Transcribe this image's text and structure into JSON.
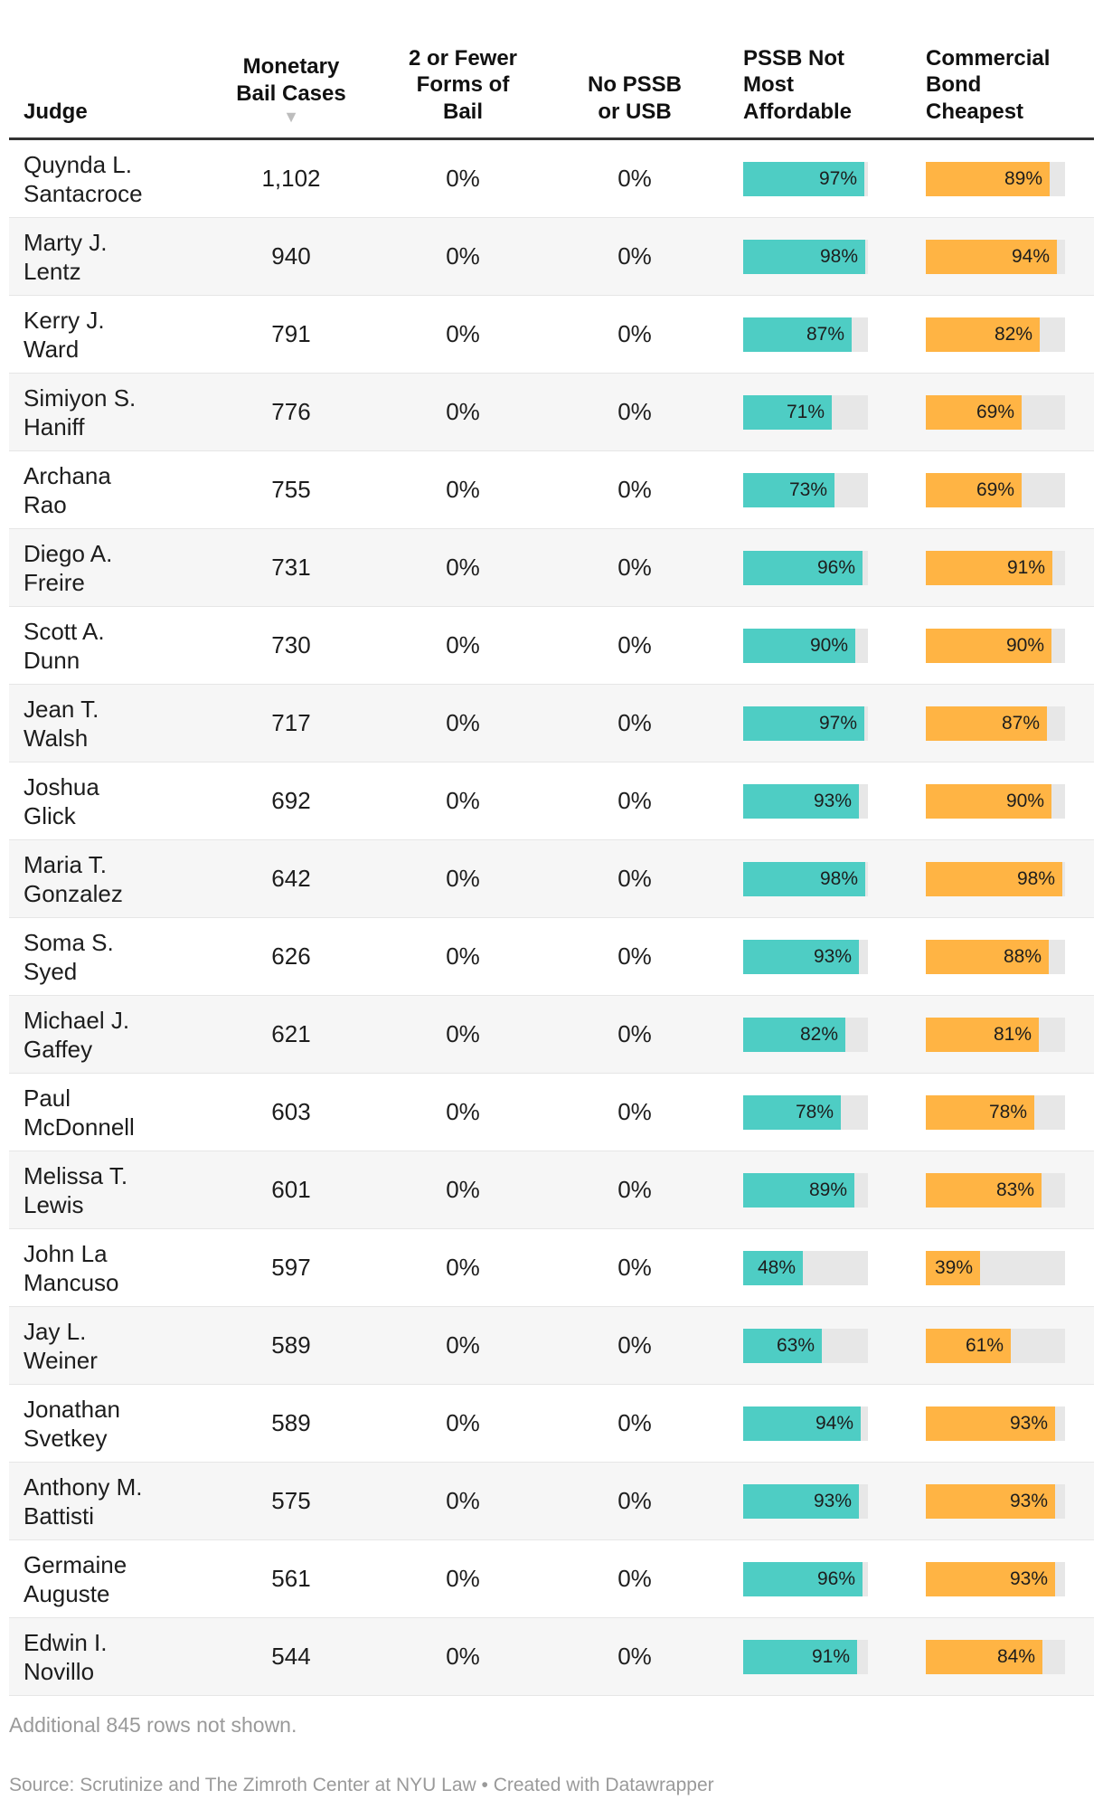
{
  "table": {
    "headers": {
      "judge": "Judge",
      "monetary": [
        "Monetary",
        "Bail Cases"
      ],
      "sort_icon": "▼",
      "two_or_fewer": [
        "2 or Fewer",
        "Forms of",
        "Bail"
      ],
      "no_pssb": [
        "No PSSB",
        "or USB"
      ],
      "pssb_not": [
        "PSSB Not",
        "Most",
        "Affordable"
      ],
      "commercial": [
        "Commercial",
        "Bond",
        "Cheapest"
      ]
    },
    "colors": {
      "pssb_bar": "#4ecdc4",
      "commercial_bar": "#ffb444",
      "track": "#e7e7e7"
    }
  },
  "chart_data": {
    "type": "table",
    "columns": [
      "Judge",
      "Monetary Bail Cases",
      "2 or Fewer Forms of Bail",
      "No PSSB or USB",
      "PSSB Not Most Affordable",
      "Commercial Bond Cheapest"
    ],
    "rows": [
      {
        "judge": [
          "Quynda L.",
          "Santacroce"
        ],
        "monetary": "1,102",
        "two_or_fewer": "0%",
        "no_pssb": "0%",
        "pssb_not": 97,
        "pssb_label": "97%",
        "commercial": 89,
        "commercial_label": "89%"
      },
      {
        "judge": [
          "Marty J.",
          "Lentz"
        ],
        "monetary": "940",
        "two_or_fewer": "0%",
        "no_pssb": "0%",
        "pssb_not": 98,
        "pssb_label": "98%",
        "commercial": 94,
        "commercial_label": "94%"
      },
      {
        "judge": [
          "Kerry J.",
          "Ward"
        ],
        "monetary": "791",
        "two_or_fewer": "0%",
        "no_pssb": "0%",
        "pssb_not": 87,
        "pssb_label": "87%",
        "commercial": 82,
        "commercial_label": "82%"
      },
      {
        "judge": [
          "Simiyon S.",
          "Haniff"
        ],
        "monetary": "776",
        "two_or_fewer": "0%",
        "no_pssb": "0%",
        "pssb_not": 71,
        "pssb_label": "71%",
        "commercial": 69,
        "commercial_label": "69%"
      },
      {
        "judge": [
          "Archana",
          "Rao"
        ],
        "monetary": "755",
        "two_or_fewer": "0%",
        "no_pssb": "0%",
        "pssb_not": 73,
        "pssb_label": "73%",
        "commercial": 69,
        "commercial_label": "69%"
      },
      {
        "judge": [
          "Diego A.",
          "Freire"
        ],
        "monetary": "731",
        "two_or_fewer": "0%",
        "no_pssb": "0%",
        "pssb_not": 96,
        "pssb_label": "96%",
        "commercial": 91,
        "commercial_label": "91%"
      },
      {
        "judge": [
          "Scott A.",
          "Dunn"
        ],
        "monetary": "730",
        "two_or_fewer": "0%",
        "no_pssb": "0%",
        "pssb_not": 90,
        "pssb_label": "90%",
        "commercial": 90,
        "commercial_label": "90%"
      },
      {
        "judge": [
          "Jean T.",
          "Walsh"
        ],
        "monetary": "717",
        "two_or_fewer": "0%",
        "no_pssb": "0%",
        "pssb_not": 97,
        "pssb_label": "97%",
        "commercial": 87,
        "commercial_label": "87%"
      },
      {
        "judge": [
          "Joshua",
          "Glick"
        ],
        "monetary": "692",
        "two_or_fewer": "0%",
        "no_pssb": "0%",
        "pssb_not": 93,
        "pssb_label": "93%",
        "commercial": 90,
        "commercial_label": "90%"
      },
      {
        "judge": [
          "Maria T.",
          "Gonzalez"
        ],
        "monetary": "642",
        "two_or_fewer": "0%",
        "no_pssb": "0%",
        "pssb_not": 98,
        "pssb_label": "98%",
        "commercial": 98,
        "commercial_label": "98%"
      },
      {
        "judge": [
          "Soma S.",
          "Syed"
        ],
        "monetary": "626",
        "two_or_fewer": "0%",
        "no_pssb": "0%",
        "pssb_not": 93,
        "pssb_label": "93%",
        "commercial": 88,
        "commercial_label": "88%"
      },
      {
        "judge": [
          "Michael J.",
          "Gaffey"
        ],
        "monetary": "621",
        "two_or_fewer": "0%",
        "no_pssb": "0%",
        "pssb_not": 82,
        "pssb_label": "82%",
        "commercial": 81,
        "commercial_label": "81%"
      },
      {
        "judge": [
          "Paul",
          "McDonnell"
        ],
        "monetary": "603",
        "two_or_fewer": "0%",
        "no_pssb": "0%",
        "pssb_not": 78,
        "pssb_label": "78%",
        "commercial": 78,
        "commercial_label": "78%"
      },
      {
        "judge": [
          "Melissa T.",
          "Lewis"
        ],
        "monetary": "601",
        "two_or_fewer": "0%",
        "no_pssb": "0%",
        "pssb_not": 89,
        "pssb_label": "89%",
        "commercial": 83,
        "commercial_label": "83%"
      },
      {
        "judge": [
          "John La",
          "Mancuso"
        ],
        "monetary": "597",
        "two_or_fewer": "0%",
        "no_pssb": "0%",
        "pssb_not": 48,
        "pssb_label": "48%",
        "commercial": 39,
        "commercial_label": "39%"
      },
      {
        "judge": [
          "Jay L.",
          "Weiner"
        ],
        "monetary": "589",
        "two_or_fewer": "0%",
        "no_pssb": "0%",
        "pssb_not": 63,
        "pssb_label": "63%",
        "commercial": 61,
        "commercial_label": "61%"
      },
      {
        "judge": [
          "Jonathan",
          "Svetkey"
        ],
        "monetary": "589",
        "two_or_fewer": "0%",
        "no_pssb": "0%",
        "pssb_not": 94,
        "pssb_label": "94%",
        "commercial": 93,
        "commercial_label": "93%"
      },
      {
        "judge": [
          "Anthony M.",
          "Battisti"
        ],
        "monetary": "575",
        "two_or_fewer": "0%",
        "no_pssb": "0%",
        "pssb_not": 93,
        "pssb_label": "93%",
        "commercial": 93,
        "commercial_label": "93%"
      },
      {
        "judge": [
          "Germaine",
          "Auguste"
        ],
        "monetary": "561",
        "two_or_fewer": "0%",
        "no_pssb": "0%",
        "pssb_not": 96,
        "pssb_label": "96%",
        "commercial": 93,
        "commercial_label": "93%"
      },
      {
        "judge": [
          "Edwin I.",
          "Novillo"
        ],
        "monetary": "544",
        "two_or_fewer": "0%",
        "no_pssb": "0%",
        "pssb_not": 91,
        "pssb_label": "91%",
        "commercial": 84,
        "commercial_label": "84%"
      }
    ]
  },
  "footer": {
    "note": "Additional 845 rows not shown.",
    "source": "Source: Scrutinize and The Zimroth Center at NYU Law • Created with Datawrapper"
  }
}
